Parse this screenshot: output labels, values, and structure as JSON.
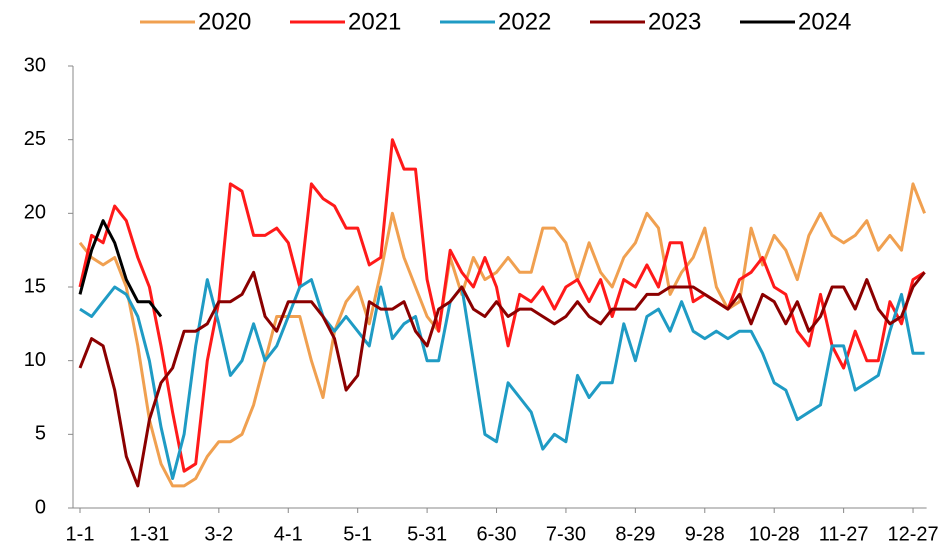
{
  "chart_data": {
    "type": "line",
    "categories": [
      "1-1",
      null,
      null,
      null,
      null,
      null,
      "1-31",
      null,
      null,
      null,
      null,
      null,
      "3-2",
      null,
      null,
      null,
      null,
      null,
      "4-1",
      null,
      null,
      null,
      null,
      null,
      "5-1",
      null,
      null,
      null,
      null,
      null,
      "5-31",
      null,
      null,
      null,
      null,
      null,
      "6-30",
      null,
      null,
      null,
      null,
      null,
      "7-30",
      null,
      null,
      null,
      null,
      null,
      "8-29",
      null,
      null,
      null,
      null,
      null,
      "9-28",
      null,
      null,
      null,
      null,
      null,
      "10-28",
      null,
      null,
      null,
      null,
      null,
      "11-27",
      null,
      null,
      null,
      null,
      null,
      "12-27",
      null
    ],
    "series": [
      {
        "name": "2020",
        "color": "#f0a050",
        "values": [
          18,
          17,
          16.5,
          17,
          15,
          11,
          6,
          3,
          1.5,
          1.5,
          2,
          3.5,
          4.5,
          4.5,
          5,
          7,
          10,
          13,
          13,
          13,
          10,
          7.5,
          12,
          14,
          15,
          12.5,
          16,
          20,
          17,
          15,
          13,
          12,
          17,
          14.5,
          17,
          15.5,
          16,
          17,
          16,
          16,
          19,
          19,
          18,
          15.5,
          18,
          16,
          15,
          17,
          18,
          20,
          19,
          14.5,
          16,
          17,
          19,
          15,
          13.5,
          14,
          19,
          16.5,
          18.5,
          17.5,
          15.5,
          18.5,
          20,
          18.5,
          18,
          18.5,
          19.5,
          17.5,
          18.5,
          17.5,
          22,
          20
        ]
      },
      {
        "name": "2021",
        "color": "#ff1a1a",
        "values": [
          15,
          18.5,
          18,
          20.5,
          19.5,
          17,
          15,
          11,
          6.5,
          2.5,
          3,
          10,
          14,
          22,
          21.5,
          18.5,
          18.5,
          19,
          18,
          15,
          22,
          21,
          20.5,
          19,
          19,
          16.5,
          17,
          25,
          23,
          23,
          15.5,
          12,
          17.5,
          16,
          15,
          17,
          15,
          11,
          14.5,
          14,
          15,
          13.5,
          15,
          15.5,
          14,
          15.5,
          13,
          15.5,
          15,
          16.5,
          15,
          18,
          18,
          14,
          14.5,
          14,
          13.5,
          15.5,
          16,
          17,
          15,
          14.5,
          12,
          11,
          14.5,
          11,
          9.5,
          12,
          10,
          10,
          14,
          12.5,
          15.5,
          16
        ]
      },
      {
        "name": "2022",
        "color": "#1f9bc4",
        "values": [
          13.5,
          13,
          14,
          15,
          14.5,
          13,
          10,
          5.5,
          2,
          5,
          11,
          15.5,
          12.5,
          9,
          10,
          12.5,
          10,
          11,
          13,
          15,
          15.5,
          13,
          12,
          13,
          12,
          11,
          15,
          11.5,
          12.5,
          13,
          10,
          10,
          14,
          15,
          10,
          5,
          4.5,
          8.5,
          7.5,
          6.5,
          4,
          5,
          4.5,
          9,
          7.5,
          8.5,
          8.5,
          12.5,
          10,
          13,
          13.5,
          12,
          14,
          12,
          11.5,
          12,
          11.5,
          12,
          12,
          10.5,
          8.5,
          8,
          6,
          6.5,
          7,
          11,
          11,
          8,
          8.5,
          9,
          12,
          14.5,
          10.5,
          10.5
        ]
      },
      {
        "name": "2023",
        "color": "#8b0000",
        "values": [
          9.5,
          11.5,
          11,
          8,
          3.5,
          1.5,
          6,
          8.5,
          9.5,
          12,
          12,
          12.5,
          14,
          14,
          14.5,
          16,
          13,
          12,
          14,
          14,
          14,
          13,
          11.5,
          8,
          9,
          14,
          13.5,
          13.5,
          14,
          12,
          11,
          13.5,
          14,
          15,
          13.5,
          13,
          14,
          13,
          13.5,
          13.5,
          13,
          12.5,
          13,
          14,
          13,
          12.5,
          13.5,
          13.5,
          13.5,
          14.5,
          14.5,
          15,
          15,
          15,
          14.5,
          14,
          13.5,
          14.5,
          12.5,
          14.5,
          14,
          12.5,
          14,
          12,
          13,
          15,
          15,
          13.5,
          15.5,
          13.5,
          12.5,
          13,
          15,
          16
        ]
      },
      {
        "name": "2024",
        "color": "#000000",
        "values": [
          14.5,
          17.5,
          19.5,
          18,
          15.5,
          14,
          14,
          13,
          null,
          null,
          null,
          null,
          null,
          null,
          null,
          null,
          null,
          null,
          null,
          null,
          null,
          null,
          null,
          null,
          null,
          null,
          null,
          null,
          null,
          null,
          null,
          null,
          null,
          null,
          null,
          null,
          null,
          null,
          null,
          null,
          null,
          null,
          null,
          null,
          null,
          null,
          null,
          null,
          null,
          null,
          null,
          null,
          null,
          null,
          null,
          null,
          null,
          null,
          null,
          null,
          null,
          null,
          null,
          null,
          null,
          null,
          null,
          null,
          null,
          null,
          null,
          null,
          null,
          null
        ]
      }
    ],
    "ylim": [
      0,
      30
    ],
    "yticks": [
      0,
      5,
      10,
      15,
      20,
      25,
      30
    ],
    "grid": false,
    "legend": "top"
  }
}
